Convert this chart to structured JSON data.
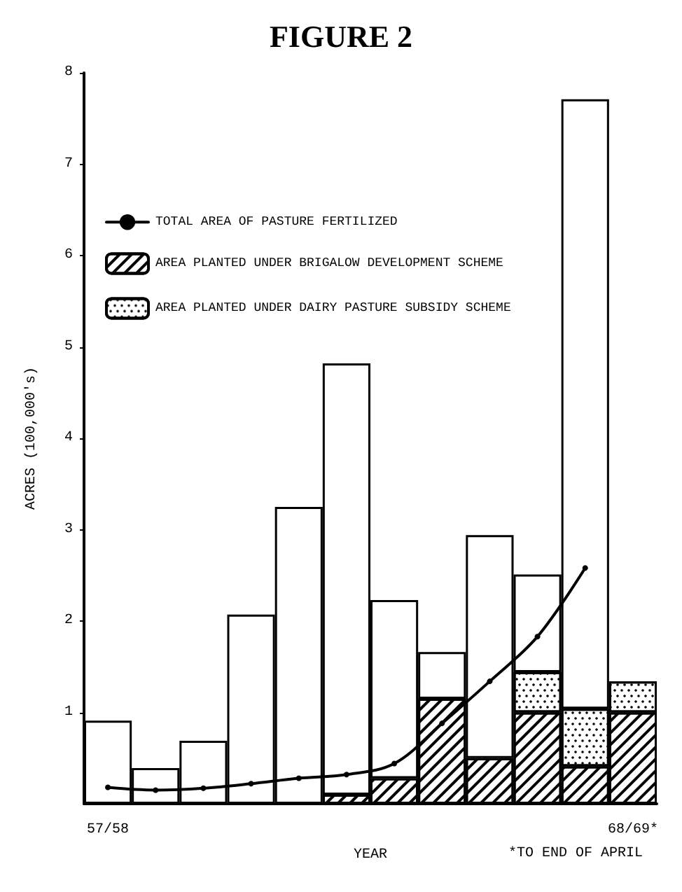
{
  "chart_data": {
    "type": "bar",
    "title": "FIGURE 2",
    "xlabel": "YEAR",
    "ylabel": "ACRES (100,000's)",
    "categories": [
      "57/58",
      null,
      null,
      null,
      null,
      null,
      null,
      null,
      null,
      null,
      null,
      "68/69*"
    ],
    "stacked": true,
    "series": [
      {
        "name": "AREA PLANTED UNDER BRIGALOW DEVELOPMENT SCHEME",
        "color": "#000000",
        "values": [
          null,
          null,
          null,
          null,
          null,
          0.1,
          0.28,
          1.15,
          0.5,
          1.0,
          0.41,
          1.0
        ]
      },
      {
        "name": "AREA PLANTED UNDER DAIRY PASTURE SUBSIDY SCHEME",
        "color": "#000000",
        "values": [
          null,
          null,
          null,
          null,
          null,
          null,
          null,
          null,
          null,
          0.44,
          0.63,
          0.34
        ]
      },
      {
        "color": "#ffffff",
        "values": [
          0.91,
          0.39,
          0.69,
          2.07,
          3.25,
          4.72,
          1.95,
          0.51,
          2.44,
          1.07,
          6.67,
          null
        ]
      },
      {
        "type": "line",
        "name": "TOTAL AREA OF PASTURE FERTILIZED",
        "color": "#000000",
        "marker": "circle",
        "line_style": "solid",
        "values": [
          0.18,
          0.15,
          0.17,
          0.22,
          0.28,
          0.32,
          0.44,
          0.88,
          1.34,
          1.83,
          2.58,
          null
        ]
      }
    ],
    "ylim": [
      0,
      8
    ],
    "yticks": [
      1,
      2,
      3,
      4,
      5,
      6,
      7,
      8
    ],
    "grid": false,
    "legend": "top left",
    "annotations": [
      "*TO END OF APRIL"
    ]
  }
}
